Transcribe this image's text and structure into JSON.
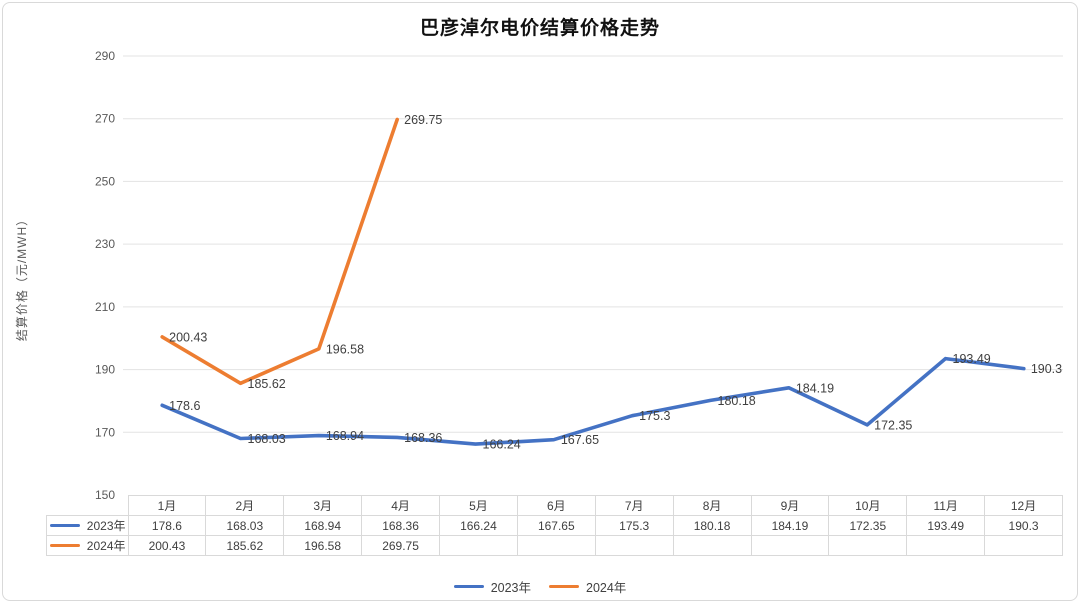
{
  "title": "巴彦淖尔电价结算价格走势",
  "chart_data": {
    "type": "line",
    "title": "巴彦淖尔电价结算价格走势",
    "ylabel": "结算价格（元/MWH）",
    "xlabel": "",
    "categories": [
      "1月",
      "2月",
      "3月",
      "4月",
      "5月",
      "6月",
      "7月",
      "8月",
      "9月",
      "10月",
      "11月",
      "12月"
    ],
    "series": [
      {
        "name": "2023年",
        "color": "#4472C4",
        "values": [
          178.6,
          168.03,
          168.94,
          168.36,
          166.24,
          167.65,
          175.3,
          180.18,
          184.19,
          172.35,
          193.49,
          190.3
        ]
      },
      {
        "name": "2024年",
        "color": "#ED7D31",
        "values": [
          200.43,
          185.62,
          196.58,
          269.75,
          null,
          null,
          null,
          null,
          null,
          null,
          null,
          null
        ]
      }
    ],
    "ylim": [
      150,
      290
    ],
    "yticks": [
      150,
      170,
      190,
      210,
      230,
      250,
      270,
      290
    ],
    "grid": true,
    "data_labels": true,
    "legend_position": "bottom",
    "data_table_with_legend_keys": true
  },
  "colors": {
    "series_2023": "#4472C4",
    "series_2024": "#ED7D31",
    "gridline": "#e3e3e3",
    "axis_text": "#595959",
    "label_text": "#404040",
    "table_border": "#d9d9d9"
  }
}
